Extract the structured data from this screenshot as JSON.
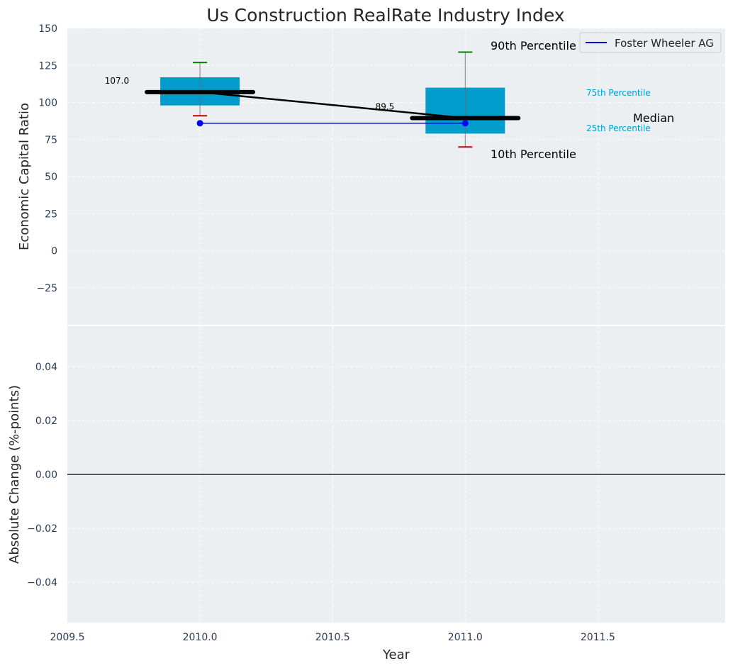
{
  "chart_data": {
    "type": "box",
    "title": "Us Construction RealRate Industry Index",
    "xlabel": "Year",
    "x_ticks": [
      2009.5,
      2010.0,
      2010.5,
      2011.0,
      2011.5
    ],
    "x_tick_labels": [
      "2009.5",
      "2010.0",
      "2010.5",
      "2011.0",
      "2011.5"
    ],
    "xlim": [
      2009.5,
      2011.98
    ],
    "top_panel": {
      "ylabel": "Economic Capital Ratio",
      "ylim": [
        -50,
        150
      ],
      "y_ticks": [
        -25,
        0,
        25,
        50,
        75,
        100,
        125,
        150
      ],
      "y_tick_labels": [
        "−25",
        "0",
        "25",
        "50",
        "75",
        "100",
        "125",
        "150"
      ],
      "grid": true,
      "boxes": [
        {
          "x": 2010.0,
          "p10": 91,
          "p25": 98,
          "median": 107.0,
          "p75": 117,
          "p90": 127,
          "median_label": "107.0"
        },
        {
          "x": 2011.0,
          "p10": 70,
          "p25": 79,
          "median": 89.5,
          "p75": 110,
          "p90": 134,
          "median_label": "89.5"
        }
      ],
      "series": [
        {
          "name": "Foster Wheeler AG",
          "x": [
            2010.0,
            2011.0
          ],
          "values": [
            86,
            86
          ],
          "color": "#0000ff"
        }
      ],
      "median_line": {
        "x": [
          2010.0,
          2011.0
        ],
        "values": [
          107.0,
          89.5
        ]
      },
      "annotations": {
        "p90": "90th Percentile",
        "p75": "75th Percentile",
        "median": "Median",
        "p25": "25th Percentile",
        "p10": "10th Percentile"
      },
      "legend_position": "top-right"
    },
    "bottom_panel": {
      "ylabel": "Absolute Change (%-points)",
      "ylim": [
        -0.055,
        0.055
      ],
      "y_ticks": [
        -0.04,
        -0.02,
        0.0,
        0.02,
        0.04
      ],
      "y_tick_labels": [
        "−0.04",
        "−0.02",
        "0.00",
        "0.02",
        "0.04"
      ],
      "grid": true,
      "zero_line": true
    }
  },
  "colors": {
    "box": "#009ccc",
    "panel_bg": "#ebeff1",
    "p90_cap": "#008000",
    "p10_cap": "#cc0000",
    "annotation_text": "#000000",
    "quartile_text": "#009ccc",
    "tick_text": "#2b3d56"
  }
}
